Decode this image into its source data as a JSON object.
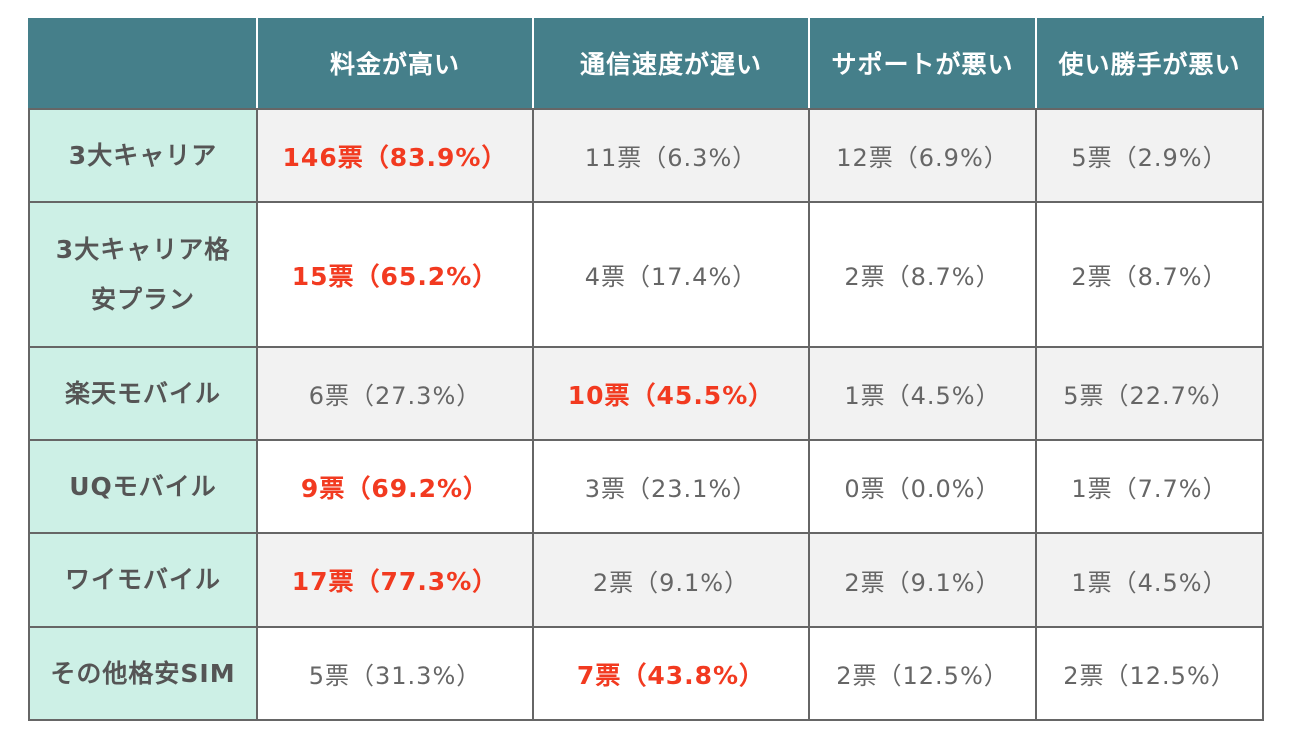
{
  "table": {
    "header": [
      "",
      "料金が高い",
      "通信速度が遅い",
      "サポートが悪い",
      "使い勝手が悪い"
    ],
    "rows": [
      {
        "label": "3大キャリア",
        "cells": [
          "146票（83.9%）",
          "11票（6.3%）",
          "12票（6.9%）",
          "5票（2.9%）"
        ],
        "highlight_index": 0
      },
      {
        "label": "3大キャリア格安プラン",
        "cells": [
          "15票（65.2%）",
          "4票（17.4%）",
          "2票（8.7%）",
          "2票（8.7%）"
        ],
        "highlight_index": 0
      },
      {
        "label": "楽天モバイル",
        "cells": [
          "6票（27.3%）",
          "10票（45.5%）",
          "1票（4.5%）",
          "5票（22.7%）"
        ],
        "highlight_index": 1
      },
      {
        "label": "UQモバイル",
        "cells": [
          "9票（69.2%）",
          "3票（23.1%）",
          "0票（0.0%）",
          "1票（7.7%）"
        ],
        "highlight_index": 0
      },
      {
        "label": "ワイモバイル",
        "cells": [
          "17票（77.3%）",
          "2票（9.1%）",
          "2票（9.1%）",
          "1票（4.5%）"
        ],
        "highlight_index": 0
      },
      {
        "label": "その他格安SIM",
        "cells": [
          "5票（31.3%）",
          "7票（43.8%）",
          "2票（12.5%）",
          "2票（12.5%）"
        ],
        "highlight_index": 1
      }
    ]
  },
  "colors": {
    "header_bg": "#457f8a",
    "row_label_bg": "#cdf0e6",
    "highlight_text": "#f23a20",
    "body_text": "#666666",
    "stripe_bg": "#f2f2f2"
  }
}
